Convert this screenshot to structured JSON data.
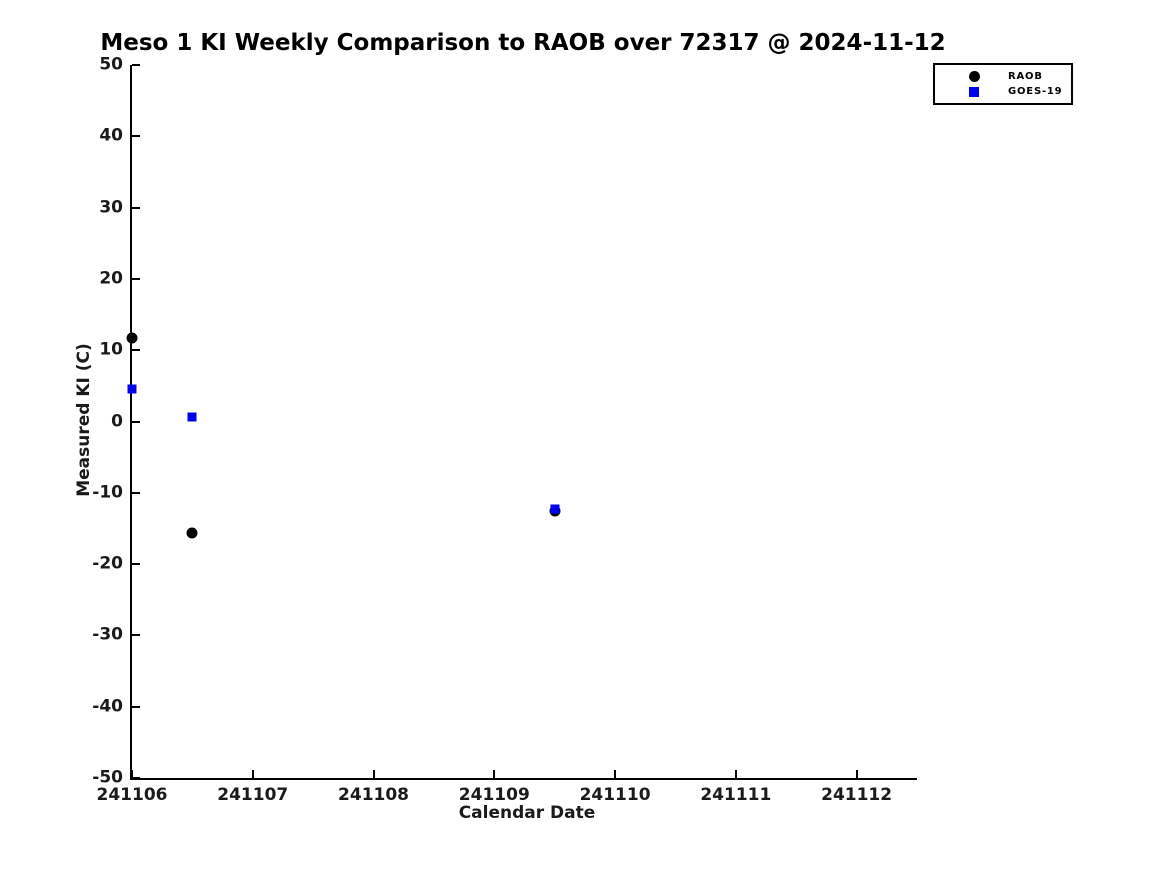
{
  "title": "Meso 1 KI Weekly Comparison to RAOB over 72317 @ 2024-11-12",
  "colors": {
    "raob": "#000000",
    "goes19": "#0000ee",
    "axis": "#000000",
    "background": "#ffffff"
  },
  "chart_data": {
    "type": "scatter",
    "title": "Meso 1 KI Weekly Comparison to RAOB over 72317 @ 2024-11-12",
    "xlabel": "Calendar Date",
    "ylabel": "Measured KI (C)",
    "xlim": [
      241106,
      241112.5
    ],
    "ylim": [
      -50,
      50
    ],
    "xticks": [
      241106,
      241107,
      241108,
      241109,
      241110,
      241111,
      241112
    ],
    "yticks": [
      50,
      40,
      30,
      20,
      10,
      0,
      -10,
      -20,
      -30,
      -40,
      -50
    ],
    "grid": false,
    "legend_position": "top-right-outside",
    "series": [
      {
        "name": "RAOB",
        "marker": "circle",
        "color": "#000000",
        "points": [
          {
            "x": 241106.0,
            "y": 11.7
          },
          {
            "x": 241106.5,
            "y": -15.7
          },
          {
            "x": 241109.5,
            "y": -12.6
          }
        ]
      },
      {
        "name": "GOES-19",
        "marker": "square",
        "color": "#0000ee",
        "points": [
          {
            "x": 241106.0,
            "y": 4.5
          },
          {
            "x": 241106.5,
            "y": 0.7
          },
          {
            "x": 241109.5,
            "y": -12.3
          }
        ]
      }
    ]
  }
}
